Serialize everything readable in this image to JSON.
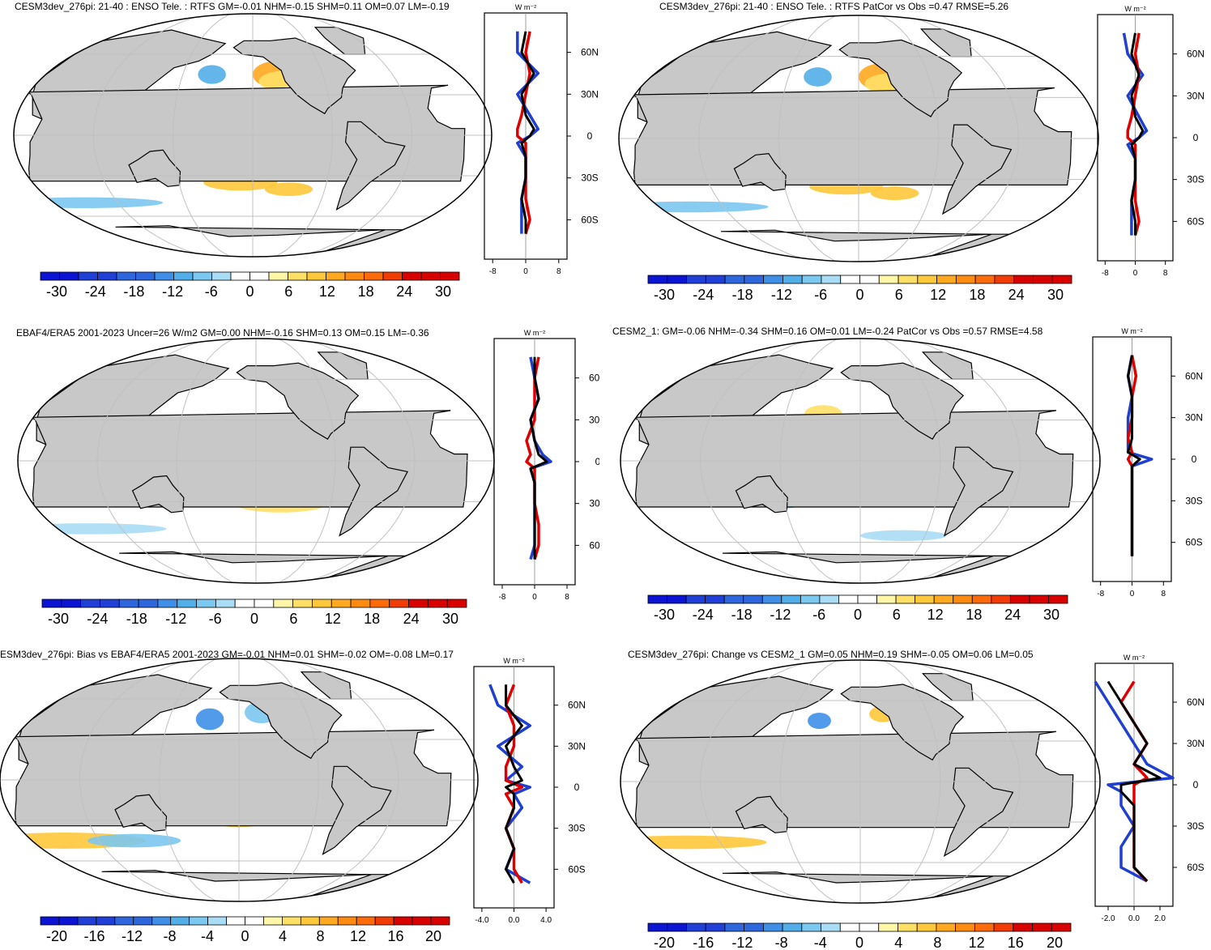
{
  "chart_data": [
    {
      "type": "heatmap",
      "title": "CESM3dev_276pi: 21-40 : ENSO Tele. : RTFS GM=-0.01 NHM=-0.15 SHM=0.11 OM=0.07 LM=-0.19",
      "colorbar": {
        "ticks": [
          "-30",
          "-24",
          "-18",
          "-12",
          "-6",
          "0",
          "6",
          "12",
          "18",
          "24",
          "30"
        ],
        "range": [
          -30,
          30
        ]
      },
      "zonal_mean": {
        "unit_label": "W m⁻²",
        "lat_ticks": [
          "60N",
          "30N",
          "0",
          "30S",
          "60S"
        ],
        "x_ticks": [
          "-8",
          "0",
          "8"
        ],
        "xlim": [
          -10,
          10
        ],
        "lats": [
          75,
          60,
          45,
          30,
          15,
          5,
          0,
          -5,
          -15,
          -30,
          -45,
          -60,
          -70
        ],
        "series": [
          {
            "name": "black",
            "color": "#000000",
            "values": [
              0,
              -1,
              2,
              -1,
              0,
              2,
              1,
              -1,
              0,
              0,
              -1,
              0,
              0
            ]
          },
          {
            "name": "blue",
            "color": "#1f3fd0",
            "values": [
              -2,
              -2,
              3,
              -2,
              1,
              3,
              1,
              -2,
              0,
              0,
              -1,
              -1,
              -1
            ]
          },
          {
            "name": "red",
            "color": "#e00000",
            "values": [
              1,
              0,
              1,
              0,
              -1,
              -2,
              -2,
              0,
              0,
              0,
              0,
              1,
              0
            ]
          }
        ]
      }
    },
    {
      "type": "heatmap",
      "title": "CESM3dev_276pi: 21-40 : ENSO Tele. : RTFS PatCor vs Obs =0.47 RMSE=5.26",
      "colorbar": {
        "ticks": [
          "-30",
          "-24",
          "-18",
          "-12",
          "-6",
          "0",
          "6",
          "12",
          "18",
          "24",
          "30"
        ],
        "range": [
          -30,
          30
        ]
      },
      "zonal_mean": {
        "unit_label": "W m⁻²",
        "lat_ticks": [
          "60N",
          "30N",
          "0",
          "30S",
          "60S"
        ],
        "x_ticks": [
          "-8",
          "0",
          "8"
        ],
        "xlim": [
          -10,
          10
        ],
        "lats": [
          75,
          60,
          45,
          30,
          15,
          5,
          0,
          -5,
          -15,
          -30,
          -45,
          -60,
          -70
        ],
        "series": [
          {
            "name": "black",
            "color": "#000000",
            "values": [
              0,
              -1,
              1,
              -1,
              0,
              2,
              1,
              -1,
              0,
              0,
              -1,
              0,
              0
            ]
          },
          {
            "name": "blue",
            "color": "#1f3fd0",
            "values": [
              -3,
              -2,
              2,
              -2,
              1,
              3,
              1,
              -2,
              0,
              0,
              -1,
              -1,
              -1
            ]
          },
          {
            "name": "red",
            "color": "#e00000",
            "values": [
              1,
              0,
              1,
              0,
              -1,
              -2,
              -2,
              0,
              0,
              0,
              0,
              1,
              0
            ]
          }
        ]
      }
    },
    {
      "type": "heatmap",
      "title": "EBAF4/ERA5 2001-2023 Uncer=26 W/m2 GM=0.00 NHM=-0.16 SHM=0.13 OM=0.15 LM=-0.36",
      "colorbar": {
        "ticks": [
          "-30",
          "-24",
          "-18",
          "-12",
          "-6",
          "0",
          "6",
          "12",
          "18",
          "24",
          "30"
        ],
        "range": [
          -30,
          30
        ]
      },
      "zonal_mean": {
        "unit_label": "W m⁻²",
        "lat_ticks": [
          "60N",
          "30N",
          "0",
          "30S",
          "60S"
        ],
        "x_ticks": [
          "-8",
          "0",
          "8"
        ],
        "xlim": [
          -10,
          10
        ],
        "lats": [
          75,
          60,
          45,
          30,
          15,
          5,
          0,
          -5,
          -15,
          -30,
          -45,
          -60,
          -70
        ],
        "series": [
          {
            "name": "black",
            "color": "#000000",
            "values": [
              0,
              0,
              1,
              -1,
              0,
              1,
              3,
              -1,
              0,
              0,
              0,
              0,
              0
            ]
          },
          {
            "name": "blue",
            "color": "#1f3fd0",
            "values": [
              -1,
              0,
              1,
              -1,
              0,
              2,
              4,
              -1,
              0,
              0,
              0,
              0,
              -1
            ]
          },
          {
            "name": "red",
            "color": "#e00000",
            "values": [
              1,
              0,
              0,
              0,
              -2,
              -1,
              -2,
              0,
              0,
              0,
              1,
              1,
              0
            ]
          }
        ]
      }
    },
    {
      "type": "heatmap",
      "title": "CESM2_1: GM=-0.06 NHM=-0.34 SHM=0.16 OM=0.01 LM=-0.24 PatCor vs Obs =0.57 RMSE=4.58",
      "colorbar": {
        "ticks": [
          "-30",
          "-24",
          "-18",
          "-12",
          "-6",
          "0",
          "6",
          "12",
          "18",
          "24",
          "30"
        ],
        "range": [
          -30,
          30
        ]
      },
      "zonal_mean": {
        "unit_label": "W m⁻²",
        "lat_ticks": [
          "60N",
          "30N",
          "0",
          "30S",
          "60S"
        ],
        "x_ticks": [
          "-8",
          "0",
          "8"
        ],
        "xlim": [
          -10,
          10
        ],
        "lats": [
          75,
          60,
          45,
          30,
          15,
          5,
          0,
          -5,
          -15,
          -30,
          -45,
          -60,
          -70
        ],
        "series": [
          {
            "name": "black",
            "color": "#000000",
            "values": [
              0,
              -1,
              0,
              0,
              0,
              -1,
              2,
              0,
              0,
              0,
              0,
              0,
              0
            ]
          },
          {
            "name": "blue",
            "color": "#1f3fd0",
            "values": [
              0,
              -1,
              0,
              -1,
              -1,
              -1,
              5,
              0,
              0,
              0,
              0,
              0,
              0
            ]
          },
          {
            "name": "red",
            "color": "#e00000",
            "values": [
              0,
              1,
              0,
              0,
              -1,
              0,
              -1,
              0,
              0,
              0,
              0,
              0,
              0
            ]
          }
        ]
      }
    },
    {
      "type": "heatmap",
      "title": "ESM3dev_276pi: Bias vs EBAF4/ERA5 2001-2023 GM=-0.01 NHM=0.01 SHM=-0.02 OM=-0.08 LM=0.17",
      "colorbar": {
        "ticks": [
          "-20",
          "-16",
          "-12",
          "-8",
          "-4",
          "0",
          "4",
          "8",
          "12",
          "16",
          "20"
        ],
        "range": [
          -22,
          22
        ]
      },
      "zonal_mean": {
        "unit_label": "W m⁻²",
        "lat_ticks": [
          "60N",
          "30N",
          "0",
          "30S",
          "60S"
        ],
        "x_ticks": [
          "-4.0",
          "0.0",
          "4.0"
        ],
        "xlim": [
          -5,
          5
        ],
        "lats": [
          75,
          60,
          45,
          30,
          15,
          5,
          0,
          -5,
          -15,
          -30,
          -45,
          -60,
          -70
        ],
        "series": [
          {
            "name": "black",
            "color": "#000000",
            "values": [
              -1,
              -1,
              1,
              -1,
              0,
              1,
              -1,
              0,
              0,
              -1,
              0,
              -1,
              0
            ]
          },
          {
            "name": "blue",
            "color": "#1f3fd0",
            "values": [
              -3,
              -2,
              2,
              -2,
              1,
              -1,
              2,
              0,
              1,
              -1,
              0,
              -1,
              2
            ]
          },
          {
            "name": "red",
            "color": "#e00000",
            "values": [
              0,
              -1,
              0,
              0,
              -1,
              -1,
              1,
              -1,
              0,
              -1,
              0,
              0,
              1
            ]
          }
        ]
      }
    },
    {
      "type": "heatmap",
      "title": "CESM3dev_276pi: Change vs CESM2_1 GM=0.05 NHM=0.19 SHM=-0.05 OM=0.06 LM=0.05",
      "colorbar": {
        "ticks": [
          "-20",
          "-16",
          "-12",
          "-8",
          "-4",
          "0",
          "4",
          "8",
          "12",
          "16",
          "20"
        ],
        "range": [
          -22,
          22
        ]
      },
      "zonal_mean": {
        "unit_label": "W m⁻²",
        "lat_ticks": [
          "60N",
          "30N",
          "0",
          "30S",
          "60S"
        ],
        "x_ticks": [
          "-2.0",
          "0.0",
          "2.0"
        ],
        "xlim": [
          -3,
          3
        ],
        "lats": [
          75,
          60,
          45,
          30,
          15,
          5,
          0,
          -5,
          -15,
          -30,
          -45,
          -60,
          -70
        ],
        "series": [
          {
            "name": "black",
            "color": "#000000",
            "values": [
              -2,
              -1,
              0,
              1,
              0,
              2,
              -1,
              -1,
              0,
              0,
              0,
              0,
              1
            ]
          },
          {
            "name": "blue",
            "color": "#1f3fd0",
            "values": [
              -3,
              -2,
              -1,
              0,
              1,
              3,
              -2,
              -1,
              -1,
              0,
              -1,
              -1,
              1
            ]
          },
          {
            "name": "red",
            "color": "#e00000",
            "values": [
              0,
              -1,
              0,
              1,
              0,
              1,
              0,
              0,
              0,
              0,
              0,
              0,
              1
            ]
          }
        ]
      }
    }
  ],
  "colors": {
    "land": "#c8c8c8",
    "ocean": "#ffffff",
    "grid": "#c0c0c0",
    "ramp": [
      "#0a14d2",
      "#1f3fd6",
      "#2e66de",
      "#3f8fe8",
      "#52aee8",
      "#7bc8f0",
      "#a9dcf5",
      "#ffffff",
      "#ffffff",
      "#fff6a8",
      "#ffe066",
      "#ffc83a",
      "#ffa820",
      "#ff8a12",
      "#ff6a0a",
      "#f23c05",
      "#d90000"
    ]
  }
}
